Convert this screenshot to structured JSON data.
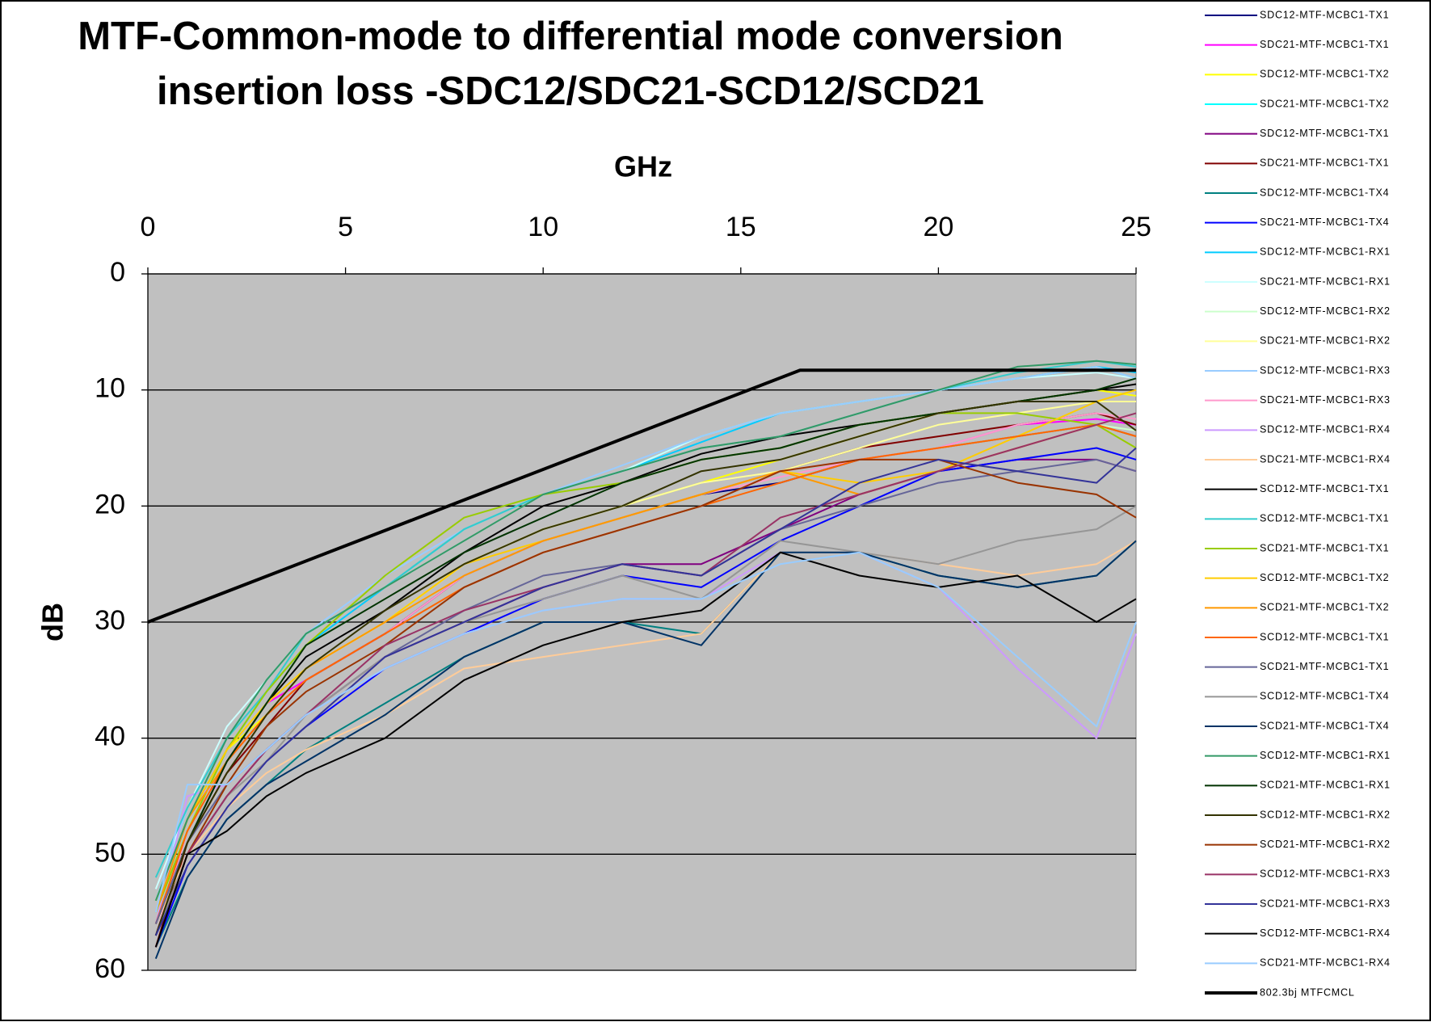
{
  "chart_data": {
    "type": "line",
    "title": [
      "MTF-Common-mode to differential mode conversion",
      "insertion loss -SDC12/SDC21-SCD12/SCD21"
    ],
    "x_label": "GHz",
    "y_label": "dB",
    "xlim": [
      0,
      25
    ],
    "xticks": [
      0,
      5,
      10,
      15,
      20,
      25
    ],
    "x_axis_position": "top",
    "ylim": [
      60,
      0
    ],
    "yticks": [
      0,
      10,
      20,
      30,
      40,
      50,
      60
    ],
    "grid": true,
    "legend": "right",
    "plot_background": "#c0c0c0",
    "x": [
      0.2,
      1,
      2,
      3,
      4,
      6,
      8,
      10,
      12,
      14,
      16,
      18,
      20,
      22,
      24,
      25
    ],
    "series": [
      {
        "name": "SDC12-MTF-MCBC1-TX1",
        "color": "#000080",
        "values": [
          56,
          48,
          42,
          38,
          35,
          31,
          26,
          23,
          21,
          19,
          18,
          16,
          15,
          14,
          13,
          14
        ]
      },
      {
        "name": "SDC21-MTF-MCBC1-TX1",
        "color": "#ff00ff",
        "values": [
          57,
          49,
          42,
          37,
          35,
          31,
          26,
          23,
          21,
          19,
          17,
          16,
          15,
          13,
          12.5,
          13
        ]
      },
      {
        "name": "SDC12-MTF-MCBC1-TX2",
        "color": "#ffff00",
        "values": [
          55,
          47,
          41,
          38,
          34,
          30,
          25,
          22,
          20,
          18,
          16,
          14,
          12,
          11,
          10,
          10.5
        ]
      },
      {
        "name": "SDC21-MTF-MCBC1-TX2",
        "color": "#00ffff",
        "values": [
          54,
          46,
          40,
          35,
          31,
          27,
          22,
          19,
          17,
          14,
          12,
          11,
          10,
          9,
          8,
          9
        ]
      },
      {
        "name": "SDC12-MTF-MCBC1-TX1",
        "color": "#800080",
        "values": [
          57,
          50,
          45,
          41,
          38,
          33,
          30,
          27,
          25,
          25,
          22,
          19,
          17,
          16,
          16,
          17
        ]
      },
      {
        "name": "SDC21-MTF-MCBC1-TX1",
        "color": "#800000",
        "values": [
          58,
          49,
          43,
          39,
          35,
          31,
          26,
          23,
          21,
          19,
          17,
          15,
          14,
          13,
          12,
          13
        ]
      },
      {
        "name": "SDC12-MTF-MCBC1-TX4",
        "color": "#008080",
        "values": [
          58,
          52,
          47,
          44,
          41,
          37,
          33,
          30,
          30,
          31,
          24,
          24,
          26,
          27,
          26,
          23
        ]
      },
      {
        "name": "SDC21-MTF-MCBC1-TX4",
        "color": "#0000ff",
        "values": [
          58,
          51,
          46,
          42,
          39,
          34,
          31,
          28,
          26,
          27,
          23,
          20,
          17,
          16,
          15,
          16
        ]
      },
      {
        "name": "SDC12-MTF-MCBC1-RX1",
        "color": "#00ccff",
        "values": [
          55,
          47,
          41,
          36,
          32,
          27,
          22,
          19,
          17,
          14.5,
          12,
          11,
          10,
          9,
          8,
          8.5
        ]
      },
      {
        "name": "SDC21-MTF-MCBC1-RX1",
        "color": "#ccffff",
        "values": [
          53,
          46,
          39,
          35,
          31,
          27,
          23,
          19,
          17,
          14,
          12,
          11,
          10,
          9,
          8.5,
          9
        ]
      },
      {
        "name": "SDC12-MTF-MCBC1-RX2",
        "color": "#ccffcc",
        "values": [
          55,
          48,
          42,
          38,
          34,
          30,
          26,
          23,
          21,
          19,
          17,
          16,
          15,
          14,
          13,
          13.5
        ]
      },
      {
        "name": "SDC21-MTF-MCBC1-RX2",
        "color": "#ffff99",
        "values": [
          56,
          48,
          41,
          37,
          34,
          30,
          25,
          22,
          20,
          18,
          17,
          15,
          13,
          12,
          11,
          11
        ]
      },
      {
        "name": "SDC12-MTF-MCBC1-RX3",
        "color": "#99ccff",
        "values": [
          54,
          46,
          40,
          36,
          31,
          26,
          22,
          19,
          16.5,
          14,
          12,
          11,
          10,
          9,
          8,
          9
        ]
      },
      {
        "name": "SDC21-MTF-MCBC1-RX3",
        "color": "#ff99cc",
        "values": [
          57,
          48,
          42,
          38,
          35,
          31,
          26,
          23,
          21,
          19,
          17.5,
          16,
          15,
          13,
          12,
          12.5
        ]
      },
      {
        "name": "SDC12-MTF-MCBC1-RX4",
        "color": "#cc99ff",
        "values": [
          56,
          45,
          44,
          41,
          38,
          34,
          31,
          29,
          28,
          28,
          24,
          24,
          27,
          34,
          40,
          31
        ]
      },
      {
        "name": "SDC21-MTF-MCBC1-RX4",
        "color": "#ffcc99",
        "values": [
          56,
          50,
          46,
          43,
          41,
          38,
          34,
          33,
          32,
          31,
          24,
          24,
          25,
          26,
          25,
          23
        ]
      },
      {
        "name": "SCD12-MTF-MCBC1-TX1",
        "color": "#000000",
        "values": [
          56,
          49,
          42,
          37,
          33,
          29,
          24,
          20,
          18,
          15.5,
          14,
          13,
          12,
          11,
          10,
          9.5
        ]
      },
      {
        "name": "SCD12-MTF-MCBC1-TX1",
        "color": "#33cccc",
        "values": [
          52,
          46,
          40,
          36,
          31,
          27,
          22,
          19,
          17,
          15,
          14,
          12,
          10,
          8.5,
          7.5,
          8
        ]
      },
      {
        "name": "SCD21-MTF-MCBC1-TX1",
        "color": "#99cc00",
        "values": [
          55,
          48,
          41,
          36,
          32,
          26,
          21,
          19,
          18,
          16,
          15,
          13,
          12,
          12,
          13,
          15
        ]
      },
      {
        "name": "SCD12-MTF-MCBC1-TX2",
        "color": "#ffcc00",
        "values": [
          54,
          47,
          41,
          37,
          34,
          30,
          25,
          23,
          21,
          19,
          17,
          18,
          17,
          14,
          11,
          10
        ]
      },
      {
        "name": "SCD21-MTF-MCBC1-TX2",
        "color": "#ff9900",
        "values": [
          55,
          47,
          42,
          38,
          34,
          30,
          26,
          23,
          21,
          19,
          17,
          19,
          17,
          15,
          13,
          14
        ]
      },
      {
        "name": "SCD12-MTF-MCBC1-TX1",
        "color": "#ff6600",
        "values": [
          56,
          48,
          42,
          38,
          35,
          31,
          27,
          24,
          22,
          20,
          18,
          16,
          15,
          14,
          13,
          14
        ]
      },
      {
        "name": "SCD21-MTF-MCBC1-TX1",
        "color": "#666699",
        "values": [
          56,
          49,
          44,
          41,
          38,
          33,
          29,
          26,
          25,
          26,
          22,
          20,
          18,
          17,
          16,
          17
        ]
      },
      {
        "name": "SCD12-MTF-MCBC1-TX4",
        "color": "#969696",
        "values": [
          57,
          50,
          45,
          42,
          38,
          33,
          30,
          28,
          26,
          28,
          23,
          24,
          25,
          23,
          22,
          20
        ]
      },
      {
        "name": "SCD21-MTF-MCBC1-TX4",
        "color": "#003366",
        "values": [
          59,
          52,
          47,
          44,
          42,
          38,
          33,
          30,
          30,
          32,
          24,
          24,
          26,
          27,
          26,
          23
        ]
      },
      {
        "name": "SCD12-MTF-MCBC1-RX1",
        "color": "#339966",
        "values": [
          54,
          47,
          40,
          35,
          31,
          27,
          23,
          19,
          17,
          15,
          14,
          12,
          10,
          8,
          7.5,
          7.8
        ]
      },
      {
        "name": "SCD21-MTF-MCBC1-RX1",
        "color": "#003300",
        "values": [
          57,
          49,
          42,
          37,
          32,
          28,
          24,
          21,
          18,
          16,
          15,
          13,
          12,
          11,
          10,
          9
        ]
      },
      {
        "name": "SCD12-MTF-MCBC1-RX2",
        "color": "#333300",
        "values": [
          57,
          49,
          43,
          38,
          34,
          29,
          25,
          22,
          20,
          17,
          16,
          14,
          12,
          11,
          11,
          13.5
        ]
      },
      {
        "name": "SCD21-MTF-MCBC1-RX2",
        "color": "#993300",
        "values": [
          58,
          50,
          44,
          39,
          36,
          32,
          27,
          24,
          22,
          20,
          17,
          16,
          16,
          18,
          19,
          21
        ]
      },
      {
        "name": "SCD12-MTF-MCBC1-RX3",
        "color": "#993366",
        "values": [
          58,
          50,
          45,
          41,
          38,
          32,
          29,
          27,
          25,
          26,
          21,
          19,
          17,
          15,
          13,
          12
        ]
      },
      {
        "name": "SCD21-MTF-MCBC1-RX3",
        "color": "#333399",
        "values": [
          57,
          51,
          46,
          42,
          39,
          33,
          30,
          27,
          25,
          26,
          22,
          18,
          16,
          17,
          18,
          15
        ]
      },
      {
        "name": "SCD12-MTF-MCBC1-RX4",
        "color": "#000000",
        "values": [
          58,
          50,
          48,
          45,
          43,
          40,
          35,
          32,
          30,
          29,
          24,
          26,
          27,
          26,
          30,
          28
        ]
      },
      {
        "name": "SCD21-MTF-MCBC1-RX4",
        "color": "#99ccff",
        "values": [
          55,
          44,
          44,
          41,
          38,
          34,
          31,
          29,
          28,
          28,
          25,
          24,
          27,
          33,
          39,
          30
        ]
      },
      {
        "name": "802.3bj MTFCMCL",
        "color": "#000000",
        "line_width": 4,
        "x": [
          0,
          16.5,
          25
        ],
        "values": [
          30,
          8.3,
          8.3
        ]
      }
    ]
  }
}
